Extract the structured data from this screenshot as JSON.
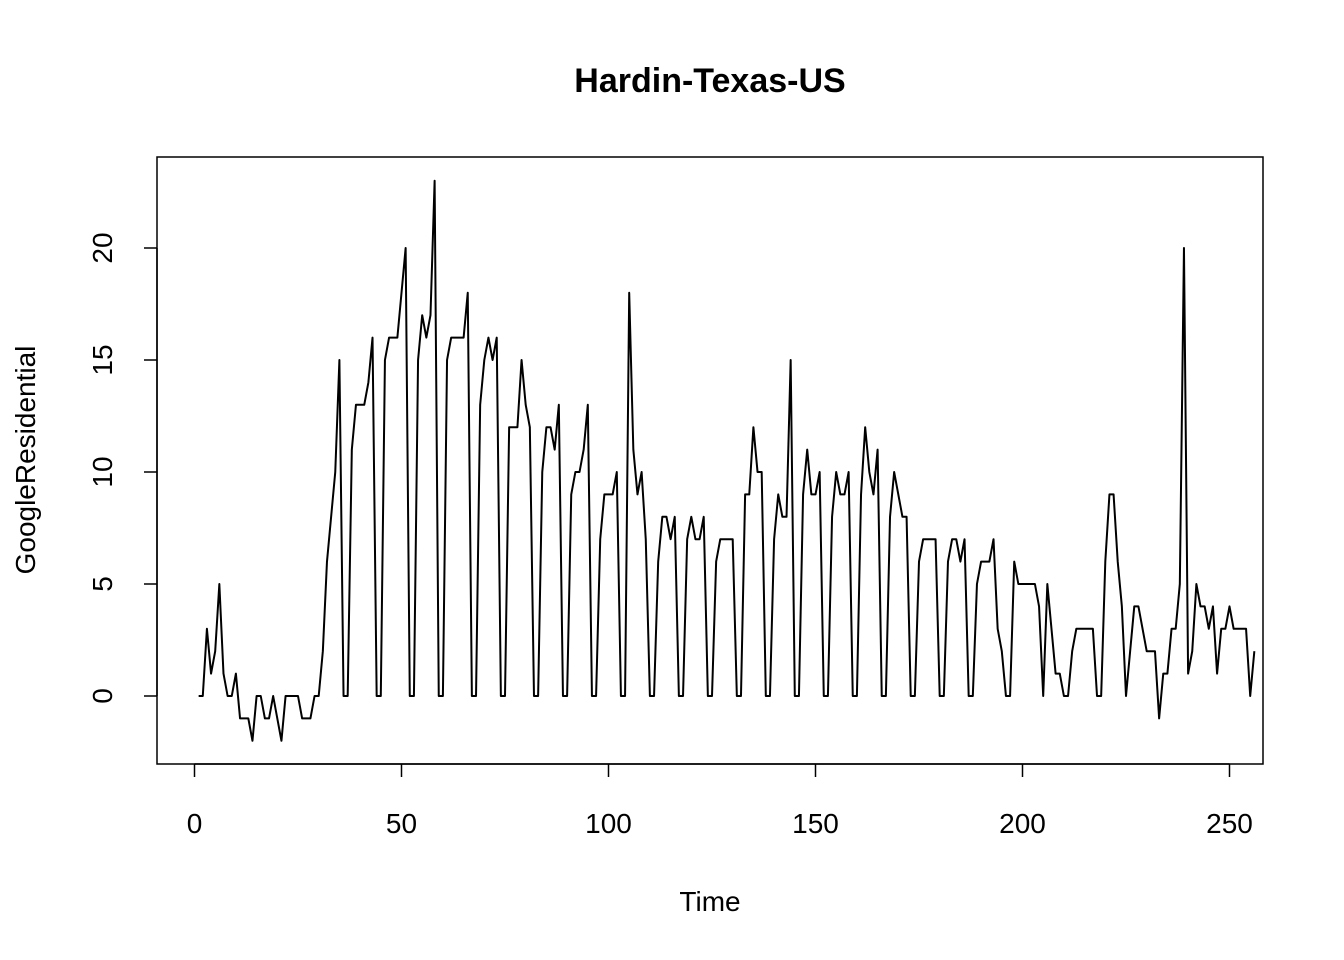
{
  "chart_data": {
    "type": "line",
    "title": "Hardin-Texas-US",
    "xlabel": "Time",
    "ylabel": "GoogleResidential",
    "xlim": [
      1,
      248
    ],
    "ylim": [
      -2,
      23
    ],
    "xticks": [
      0,
      50,
      100,
      150,
      200,
      250
    ],
    "yticks": [
      0,
      5,
      10,
      15,
      20
    ],
    "xtick_labels": [
      "0",
      "50",
      "100",
      "150",
      "200",
      "250"
    ],
    "ytick_labels": [
      "0",
      "5",
      "10",
      "15",
      "20"
    ],
    "grid": false,
    "legend": "none",
    "line_color": "#000000",
    "series": [
      {
        "values": [
          0,
          0,
          3,
          1,
          2,
          5,
          1,
          0,
          0,
          1,
          -1,
          -1,
          -1,
          -2,
          0,
          0,
          -1,
          -1,
          0,
          -1,
          -2,
          0,
          0,
          0,
          0,
          -1,
          -1,
          -1,
          0,
          0,
          2,
          6,
          8,
          10,
          15,
          0,
          0,
          11,
          13,
          13,
          13,
          14,
          16,
          0,
          0,
          15,
          16,
          16,
          16,
          18,
          20,
          0,
          0,
          15,
          17,
          16,
          17,
          23,
          0,
          0,
          15,
          16,
          16,
          16,
          16,
          18,
          0,
          0,
          13,
          15,
          16,
          15,
          16,
          0,
          0,
          12,
          12,
          12,
          15,
          13,
          12,
          0,
          0,
          10,
          12,
          12,
          11,
          13,
          0,
          0,
          9,
          10,
          10,
          11,
          13,
          0,
          0,
          7,
          9,
          9,
          9,
          10,
          0,
          0,
          18,
          11,
          9,
          10,
          7,
          0,
          0,
          6,
          8,
          8,
          7,
          8,
          0,
          0,
          7,
          8,
          7,
          7,
          8,
          0,
          0,
          6,
          7,
          7,
          7,
          7,
          0,
          0,
          9,
          9,
          12,
          10,
          10,
          0,
          0,
          7,
          9,
          8,
          8,
          15,
          0,
          0,
          9,
          11,
          9,
          9,
          10,
          0,
          0,
          8,
          10,
          9,
          9,
          10,
          0,
          0,
          9,
          12,
          10,
          9,
          11,
          0,
          0,
          8,
          10,
          9,
          8,
          8,
          0,
          0,
          6,
          7,
          7,
          7,
          7,
          0,
          0,
          6,
          7,
          7,
          6,
          7,
          0,
          0,
          5,
          6,
          6,
          6,
          7,
          3,
          2,
          0,
          0,
          6,
          5,
          5,
          5,
          5,
          5,
          4,
          0,
          5,
          3,
          1,
          1,
          0,
          0,
          2,
          3,
          3,
          3,
          3,
          3,
          0,
          0,
          6,
          9,
          9,
          6,
          4,
          0,
          2,
          4,
          4,
          3,
          2,
          2,
          2,
          -1,
          1,
          1,
          3,
          3,
          5,
          20,
          1,
          2,
          5,
          4,
          4,
          3,
          4,
          1,
          3,
          3,
          4,
          3,
          3,
          3,
          3,
          0,
          2
        ]
      }
    ]
  }
}
